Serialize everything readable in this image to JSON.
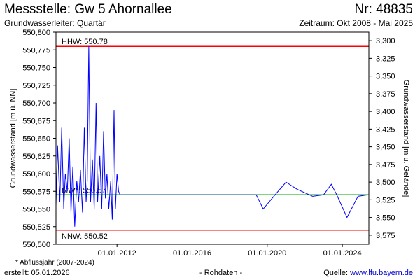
{
  "header": {
    "title": "Messstelle: Gw 5 Ahornallee",
    "number": "Nr: 48835",
    "subtitle": "Grundwasserleiter: Quartär",
    "period": "Zeitraum: Okt 2008 - Mai 2025"
  },
  "footer": {
    "footnote": "* Abflussjahr (2007-2024)",
    "created": "erstellt:  05.01.2026",
    "datatype": "- Rohdaten -",
    "source_label": "Quelle: ",
    "source_link": "www.lfu.bayern.de"
  },
  "colors": {
    "series": "#0000ff",
    "reference": "#ff0000",
    "mean": "#00aa00",
    "axis": "#000000"
  },
  "chart_data": {
    "type": "line",
    "title": "",
    "ylabel": "Grundwasserstand [m ü. NN]",
    "y2label": "Grundwasserstand [m u. Gelände]",
    "ylim": [
      550.5,
      550.8
    ],
    "y2lim": [
      3.588,
      3.288
    ],
    "xlim": [
      "2008-10-01",
      "2025-05-31"
    ],
    "yticks": [
      "550,500",
      "550,525",
      "550,550",
      "550,575",
      "550,600",
      "550,625",
      "550,650",
      "550,675",
      "550,700",
      "550,725",
      "550,750",
      "550,775",
      "550,800"
    ],
    "y2ticks": [
      "3,300",
      "3,325",
      "3,350",
      "3,375",
      "3,400",
      "3,425",
      "3,450",
      "3,475",
      "3,500",
      "3,525",
      "3,550",
      "3,575"
    ],
    "xticks": [
      {
        "date": "2012-01-01",
        "label": "01.01.2012"
      },
      {
        "date": "2016-01-01",
        "label": "01.01.2016"
      },
      {
        "date": "2020-01-01",
        "label": "01.01.2020"
      },
      {
        "date": "2024-01-01",
        "label": "01.01.2024"
      }
    ],
    "reference_lines": [
      {
        "label": "HHW: 550.78",
        "value": 550.78,
        "color": "#ff0000"
      },
      {
        "label": "NNW: 550.52",
        "value": 550.52,
        "color": "#ff0000"
      },
      {
        "label": "MW*: 550.57",
        "value": 550.57,
        "color": "#00aa00"
      }
    ],
    "series": [
      {
        "name": "",
        "color": "#0000ff",
        "x": [
          "2008-10-01",
          "2008-11-01",
          "2008-12-15",
          "2009-01-20",
          "2009-03-01",
          "2009-04-01",
          "2009-05-10",
          "2009-06-15",
          "2009-07-20",
          "2009-08-25",
          "2009-10-01",
          "2009-11-10",
          "2009-12-15",
          "2010-01-20",
          "2010-03-01",
          "2010-04-05",
          "2010-05-10",
          "2010-06-01",
          "2010-07-01",
          "2010-08-05",
          "2010-09-10",
          "2010-10-15",
          "2010-11-20",
          "2010-12-20",
          "2011-02-01",
          "2011-03-10",
          "2011-04-15",
          "2011-05-20",
          "2011-06-20",
          "2011-07-25",
          "2011-09-01",
          "2011-10-01",
          "2011-11-05",
          "2011-12-01",
          "2012-01-01",
          "2012-02-01",
          "2012-03-01",
          "2012-03-15",
          "2019-06-01",
          "2019-10-15",
          "2020-06-01",
          "2021-01-01",
          "2021-08-01",
          "2022-06-01",
          "2023-01-01",
          "2023-06-01",
          "2023-09-15",
          "2024-04-01",
          "2024-11-01",
          "2025-05-15"
        ],
        "values": [
          550.555,
          550.64,
          550.56,
          550.665,
          550.55,
          550.6,
          550.575,
          550.65,
          550.545,
          550.61,
          550.525,
          550.59,
          550.56,
          550.605,
          550.545,
          550.665,
          550.56,
          550.59,
          550.78,
          550.56,
          550.62,
          550.55,
          550.7,
          550.56,
          550.625,
          550.55,
          550.66,
          550.565,
          550.6,
          550.55,
          550.59,
          550.535,
          550.69,
          550.55,
          550.6,
          550.575,
          550.57,
          550.57,
          550.57,
          550.55,
          550.57,
          550.588,
          550.578,
          550.568,
          550.57,
          550.585,
          550.57,
          550.538,
          550.568,
          550.57
        ]
      }
    ]
  }
}
